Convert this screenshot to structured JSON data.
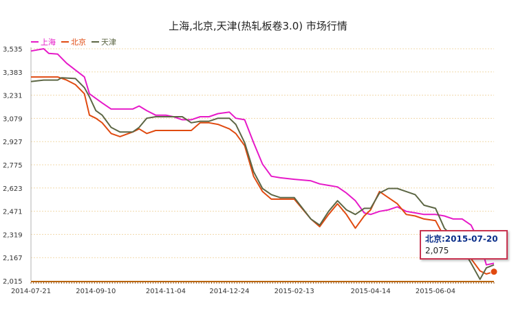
{
  "chart_data": {
    "type": "line",
    "title": "上海,北京,天津(热轧板卷3.0) 市场行情",
    "xlabel": "",
    "ylabel": "",
    "ylim": [
      2015,
      3535
    ],
    "y_ticks": [
      "2,015",
      "2,167",
      "2,319",
      "2,471",
      "2,623",
      "2,775",
      "2,927",
      "3,079",
      "3,231",
      "3,383",
      "3,535"
    ],
    "y_tick_values": [
      2015,
      2167,
      2319,
      2471,
      2623,
      2775,
      2927,
      3079,
      3231,
      3383,
      3535
    ],
    "x_ticks": [
      "2014-07-21",
      "2014-09-10",
      "2014-11-04",
      "2014-12-24",
      "2015-02-13",
      "2015-04-14",
      "2015-06-04"
    ],
    "x_range": [
      "2014-07-21",
      "2015-07-20"
    ],
    "grid": true,
    "legend_position": "top-left",
    "series": [
      {
        "name": "上海",
        "color": "#e619c8",
        "points": [
          [
            "2014-07-21",
            3520
          ],
          [
            "2014-07-31",
            3535
          ],
          [
            "2014-08-04",
            3505
          ],
          [
            "2014-08-11",
            3500
          ],
          [
            "2014-08-18",
            3440
          ],
          [
            "2014-08-25",
            3395
          ],
          [
            "2014-09-01",
            3350
          ],
          [
            "2014-09-05",
            3240
          ],
          [
            "2014-09-10",
            3210
          ],
          [
            "2014-09-15",
            3180
          ],
          [
            "2014-09-22",
            3140
          ],
          [
            "2014-09-29",
            3140
          ],
          [
            "2014-10-09",
            3140
          ],
          [
            "2014-10-14",
            3160
          ],
          [
            "2014-10-20",
            3130
          ],
          [
            "2014-10-27",
            3100
          ],
          [
            "2014-11-04",
            3100
          ],
          [
            "2014-11-10",
            3090
          ],
          [
            "2014-11-17",
            3070
          ],
          [
            "2014-11-24",
            3070
          ],
          [
            "2014-12-01",
            3090
          ],
          [
            "2014-12-08",
            3090
          ],
          [
            "2014-12-15",
            3110
          ],
          [
            "2014-12-24",
            3120
          ],
          [
            "2014-12-29",
            3080
          ],
          [
            "2015-01-05",
            3070
          ],
          [
            "2015-01-12",
            2920
          ],
          [
            "2015-01-19",
            2780
          ],
          [
            "2015-01-26",
            2700
          ],
          [
            "2015-02-02",
            2690
          ],
          [
            "2015-02-13",
            2680
          ],
          [
            "2015-02-26",
            2670
          ],
          [
            "2015-03-05",
            2650
          ],
          [
            "2015-03-12",
            2640
          ],
          [
            "2015-03-19",
            2630
          ],
          [
            "2015-03-26",
            2590
          ],
          [
            "2015-04-02",
            2540
          ],
          [
            "2015-04-09",
            2460
          ],
          [
            "2015-04-14",
            2450
          ],
          [
            "2015-04-21",
            2470
          ],
          [
            "2015-04-28",
            2480
          ],
          [
            "2015-05-05",
            2500
          ],
          [
            "2015-05-12",
            2470
          ],
          [
            "2015-05-19",
            2460
          ],
          [
            "2015-05-26",
            2450
          ],
          [
            "2015-06-04",
            2450
          ],
          [
            "2015-06-11",
            2440
          ],
          [
            "2015-06-18",
            2420
          ],
          [
            "2015-06-25",
            2420
          ],
          [
            "2015-07-02",
            2380
          ],
          [
            "2015-07-09",
            2260
          ],
          [
            "2015-07-14",
            2120
          ],
          [
            "2015-07-20",
            2130
          ]
        ]
      },
      {
        "name": "北京",
        "color": "#e04a10",
        "points": [
          [
            "2014-07-21",
            3350
          ],
          [
            "2014-08-11",
            3350
          ],
          [
            "2014-08-18",
            3330
          ],
          [
            "2014-08-25",
            3300
          ],
          [
            "2014-09-01",
            3240
          ],
          [
            "2014-09-05",
            3100
          ],
          [
            "2014-09-10",
            3080
          ],
          [
            "2014-09-15",
            3050
          ],
          [
            "2014-09-22",
            2980
          ],
          [
            "2014-09-29",
            2960
          ],
          [
            "2014-10-09",
            2990
          ],
          [
            "2014-10-14",
            3010
          ],
          [
            "2014-10-20",
            2980
          ],
          [
            "2014-10-27",
            3000
          ],
          [
            "2014-11-04",
            3000
          ],
          [
            "2014-11-10",
            3000
          ],
          [
            "2014-11-17",
            3000
          ],
          [
            "2014-11-24",
            3000
          ],
          [
            "2014-12-01",
            3050
          ],
          [
            "2014-12-08",
            3050
          ],
          [
            "2014-12-15",
            3040
          ],
          [
            "2014-12-24",
            3010
          ],
          [
            "2014-12-29",
            2980
          ],
          [
            "2015-01-05",
            2900
          ],
          [
            "2015-01-12",
            2700
          ],
          [
            "2015-01-19",
            2600
          ],
          [
            "2015-01-26",
            2550
          ],
          [
            "2015-02-02",
            2550
          ],
          [
            "2015-02-13",
            2550
          ],
          [
            "2015-02-26",
            2420
          ],
          [
            "2015-03-05",
            2370
          ],
          [
            "2015-03-12",
            2450
          ],
          [
            "2015-03-19",
            2520
          ],
          [
            "2015-03-26",
            2450
          ],
          [
            "2015-04-02",
            2360
          ],
          [
            "2015-04-09",
            2440
          ],
          [
            "2015-04-14",
            2480
          ],
          [
            "2015-04-21",
            2600
          ],
          [
            "2015-04-28",
            2560
          ],
          [
            "2015-05-05",
            2520
          ],
          [
            "2015-05-12",
            2450
          ],
          [
            "2015-05-19",
            2440
          ],
          [
            "2015-05-26",
            2420
          ],
          [
            "2015-06-04",
            2410
          ],
          [
            "2015-06-11",
            2300
          ],
          [
            "2015-06-18",
            2290
          ],
          [
            "2015-06-25",
            2250
          ],
          [
            "2015-07-02",
            2160
          ],
          [
            "2015-07-09",
            2080
          ],
          [
            "2015-07-14",
            2060
          ],
          [
            "2015-07-20",
            2075
          ]
        ]
      },
      {
        "name": "天津",
        "color": "#5c6644",
        "points": [
          [
            "2014-07-21",
            3320
          ],
          [
            "2014-07-31",
            3330
          ],
          [
            "2014-08-11",
            3330
          ],
          [
            "2014-08-14",
            3345
          ],
          [
            "2014-08-25",
            3340
          ],
          [
            "2014-09-01",
            3280
          ],
          [
            "2014-09-05",
            3220
          ],
          [
            "2014-09-10",
            3130
          ],
          [
            "2014-09-15",
            3100
          ],
          [
            "2014-09-22",
            3020
          ],
          [
            "2014-09-29",
            2990
          ],
          [
            "2014-10-09",
            2990
          ],
          [
            "2014-10-14",
            3020
          ],
          [
            "2014-10-20",
            3080
          ],
          [
            "2014-10-27",
            3090
          ],
          [
            "2014-11-04",
            3090
          ],
          [
            "2014-11-10",
            3090
          ],
          [
            "2014-11-17",
            3090
          ],
          [
            "2014-11-24",
            3050
          ],
          [
            "2014-12-01",
            3060
          ],
          [
            "2014-12-08",
            3060
          ],
          [
            "2014-12-15",
            3080
          ],
          [
            "2014-12-24",
            3080
          ],
          [
            "2014-12-29",
            3040
          ],
          [
            "2015-01-05",
            2920
          ],
          [
            "2015-01-12",
            2730
          ],
          [
            "2015-01-19",
            2620
          ],
          [
            "2015-01-26",
            2580
          ],
          [
            "2015-02-02",
            2560
          ],
          [
            "2015-02-13",
            2560
          ],
          [
            "2015-02-26",
            2420
          ],
          [
            "2015-03-05",
            2380
          ],
          [
            "2015-03-12",
            2470
          ],
          [
            "2015-03-19",
            2540
          ],
          [
            "2015-03-26",
            2480
          ],
          [
            "2015-04-02",
            2450
          ],
          [
            "2015-04-09",
            2490
          ],
          [
            "2015-04-14",
            2490
          ],
          [
            "2015-04-21",
            2590
          ],
          [
            "2015-04-28",
            2620
          ],
          [
            "2015-05-05",
            2620
          ],
          [
            "2015-05-12",
            2600
          ],
          [
            "2015-05-19",
            2580
          ],
          [
            "2015-05-26",
            2510
          ],
          [
            "2015-06-04",
            2490
          ],
          [
            "2015-06-11",
            2360
          ],
          [
            "2015-06-18",
            2300
          ],
          [
            "2015-06-25",
            2230
          ],
          [
            "2015-07-02",
            2130
          ],
          [
            "2015-07-09",
            2025
          ],
          [
            "2015-07-14",
            2100
          ],
          [
            "2015-07-20",
            2120
          ]
        ]
      }
    ],
    "tooltip": {
      "title": "北京:2015-07-20",
      "value": "2,075",
      "border_color": "#c8324f",
      "series": "北京",
      "point": [
        "2015-07-20",
        2075
      ]
    }
  }
}
